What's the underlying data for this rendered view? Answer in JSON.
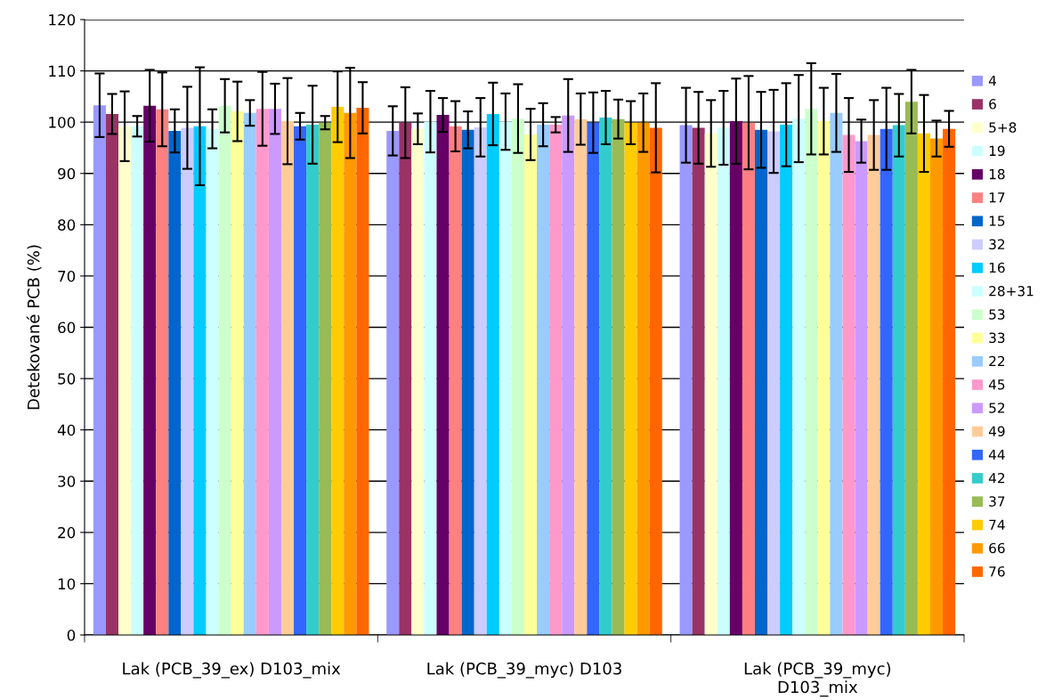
{
  "chart_data": {
    "type": "bar",
    "ylabel": "Detekované PCB (%)",
    "categories": [
      "Lak (PCB_39_ex) D103_mix",
      "Lak (PCB_39_myc) D103",
      "Lak (PCB_39_myc)\nD103_mix"
    ],
    "ylim": [
      0,
      120
    ],
    "yticks": [
      0,
      10,
      20,
      30,
      40,
      50,
      60,
      70,
      80,
      90,
      100,
      110,
      120
    ],
    "grid": "y",
    "legend": "right",
    "series": [
      {
        "name": "4",
        "color": "#9999ff",
        "values": [
          103.3,
          98.3,
          99.4
        ],
        "errors": [
          6.2,
          4.8,
          7.3
        ]
      },
      {
        "name": "6",
        "color": "#993366",
        "values": [
          101.6,
          99.9,
          98.9
        ],
        "errors": [
          3.9,
          6.9,
          7.0
        ]
      },
      {
        "name": "5+8",
        "color": "#ffffcc",
        "values": [
          99.2,
          98.7,
          97.8
        ],
        "errors": [
          6.8,
          3.0,
          6.5
        ]
      },
      {
        "name": "19",
        "color": "#ccffff",
        "values": [
          99.2,
          100.1,
          98.9
        ],
        "errors": [
          2.0,
          6.0,
          7.2
        ]
      },
      {
        "name": "18",
        "color": "#660066",
        "values": [
          103.2,
          101.4,
          100.2
        ],
        "errors": [
          7.0,
          3.3,
          8.3
        ]
      },
      {
        "name": "17",
        "color": "#ff8080",
        "values": [
          102.5,
          99.2,
          99.9
        ],
        "errors": [
          7.2,
          4.9,
          9.1
        ]
      },
      {
        "name": "15",
        "color": "#0066cc",
        "values": [
          98.3,
          98.5,
          98.5
        ],
        "errors": [
          4.2,
          3.6,
          7.4
        ]
      },
      {
        "name": "32",
        "color": "#ccccff",
        "values": [
          98.9,
          99.0,
          98.2
        ],
        "errors": [
          8.0,
          5.7,
          8.1
        ]
      },
      {
        "name": "16",
        "color": "#00ccff",
        "values": [
          99.2,
          101.6,
          99.5
        ],
        "errors": [
          11.5,
          6.1,
          8.1
        ]
      },
      {
        "name": "28+31",
        "color": "#ccffff",
        "values": [
          98.7,
          100.1,
          100.7
        ],
        "errors": [
          3.8,
          5.5,
          8.5
        ]
      },
      {
        "name": "53",
        "color": "#ccffcc",
        "values": [
          103.2,
          100.7,
          102.6
        ],
        "errors": [
          5.2,
          6.7,
          8.9
        ]
      },
      {
        "name": "33",
        "color": "#ffff99",
        "values": [
          102.1,
          97.6,
          100.2
        ],
        "errors": [
          5.8,
          5.0,
          6.5
        ]
      },
      {
        "name": "22",
        "color": "#99ccff",
        "values": [
          101.8,
          99.5,
          101.8
        ],
        "errors": [
          2.5,
          4.2,
          7.6
        ]
      },
      {
        "name": "45",
        "color": "#ff99cc",
        "values": [
          102.6,
          99.5,
          97.5
        ],
        "errors": [
          7.2,
          1.5,
          7.2
        ]
      },
      {
        "name": "52",
        "color": "#cc99ff",
        "values": [
          102.6,
          101.3,
          96.3
        ],
        "errors": [
          4.9,
          7.1,
          4.2
        ]
      },
      {
        "name": "49",
        "color": "#ffcc99",
        "values": [
          100.2,
          100.6,
          97.5
        ],
        "errors": [
          8.4,
          5.0,
          6.8
        ]
      },
      {
        "name": "44",
        "color": "#3366ff",
        "values": [
          99.2,
          99.9,
          98.7
        ],
        "errors": [
          2.6,
          5.9,
          8.0
        ]
      },
      {
        "name": "42",
        "color": "#33cccc",
        "values": [
          99.5,
          100.9,
          99.4
        ],
        "errors": [
          7.6,
          5.2,
          6.1
        ]
      },
      {
        "name": "37",
        "color": "#99bb55",
        "values": [
          99.9,
          100.6,
          104.0
        ],
        "errors": [
          1.3,
          3.8,
          6.2
        ]
      },
      {
        "name": "74",
        "color": "#ffcc00",
        "values": [
          103.0,
          99.9,
          97.8
        ],
        "errors": [
          6.9,
          4.2,
          7.5
        ]
      },
      {
        "name": "66",
        "color": "#ff9900",
        "values": [
          101.8,
          99.9,
          96.8
        ],
        "errors": [
          8.8,
          5.7,
          3.5
        ]
      },
      {
        "name": "76",
        "color": "#ff6600",
        "values": [
          102.8,
          98.9,
          98.7
        ],
        "errors": [
          5.0,
          8.7,
          3.5
        ]
      }
    ]
  }
}
